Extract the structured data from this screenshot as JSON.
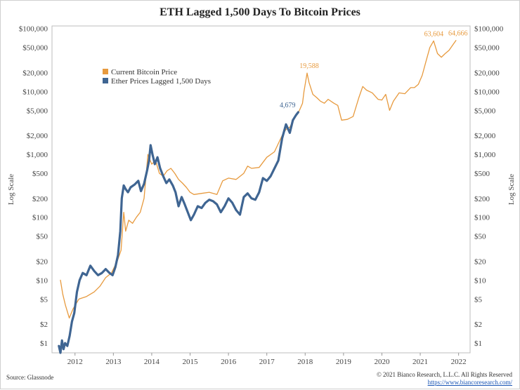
{
  "chart_data": {
    "type": "line",
    "title": "ETH Lagged 1,500 Days To Bitcoin Prices",
    "ylabel_left": "Log Scale",
    "ylabel_right": "Log Scale",
    "yscale": "log",
    "ylim": [
      0.7,
      110000
    ],
    "xlim": [
      2011.4,
      2022.3
    ],
    "x_ticks": [
      2012,
      2013,
      2014,
      2015,
      2016,
      2017,
      2018,
      2019,
      2020,
      2021,
      2022
    ],
    "y_ticks": [
      {
        "value": 1,
        "label": "$1"
      },
      {
        "value": 2,
        "label": "$2"
      },
      {
        "value": 5,
        "label": "$5"
      },
      {
        "value": 10,
        "label": "$10"
      },
      {
        "value": 20,
        "label": "$20"
      },
      {
        "value": 50,
        "label": "$50"
      },
      {
        "value": 100,
        "label": "$100"
      },
      {
        "value": 200,
        "label": "$200"
      },
      {
        "value": 500,
        "label": "$500"
      },
      {
        "value": 1000,
        "label": "$1,000"
      },
      {
        "value": 2000,
        "label": "$2,000"
      },
      {
        "value": 5000,
        "label": "$5,000"
      },
      {
        "value": 10000,
        "label": "$10,000"
      },
      {
        "value": 20000,
        "label": "$20,000"
      },
      {
        "value": 50000,
        "label": "$50,000"
      },
      {
        "value": 100000,
        "label": "$100,000"
      }
    ],
    "legend": {
      "position": "upper-left"
    },
    "series": [
      {
        "name": "Current Bitcoin Price",
        "color": "#e79a3e",
        "x": [
          2011.62,
          2011.68,
          2011.75,
          2011.85,
          2011.95,
          2012.1,
          2012.3,
          2012.5,
          2012.65,
          2012.8,
          2012.95,
          2013.1,
          2013.2,
          2013.27,
          2013.32,
          2013.4,
          2013.5,
          2013.6,
          2013.7,
          2013.8,
          2013.9,
          2013.96,
          2014.0,
          2014.1,
          2014.2,
          2014.3,
          2014.4,
          2014.5,
          2014.6,
          2014.7,
          2014.8,
          2014.9,
          2015.0,
          2015.1,
          2015.3,
          2015.5,
          2015.7,
          2015.85,
          2016.0,
          2016.2,
          2016.4,
          2016.5,
          2016.6,
          2016.8,
          2017.0,
          2017.2,
          2017.4,
          2017.5,
          2017.6,
          2017.75,
          2017.85,
          2017.93,
          2017.97,
          2018.05,
          2018.1,
          2018.2,
          2018.3,
          2018.4,
          2018.5,
          2018.6,
          2018.75,
          2018.85,
          2018.95,
          2019.1,
          2019.25,
          2019.4,
          2019.5,
          2019.6,
          2019.75,
          2019.9,
          2020.0,
          2020.1,
          2020.2,
          2020.3,
          2020.45,
          2020.6,
          2020.75,
          2020.85,
          2020.95,
          2021.05,
          2021.15,
          2021.25,
          2021.35,
          2021.45,
          2021.55,
          2021.65,
          2021.75,
          2021.85,
          2021.93
        ],
        "values": [
          10,
          6,
          4,
          2.5,
          3.5,
          5,
          5.5,
          6.5,
          8,
          11,
          13,
          20,
          30,
          120,
          60,
          90,
          80,
          100,
          120,
          200,
          1000,
          800,
          700,
          800,
          500,
          450,
          550,
          600,
          500,
          400,
          350,
          300,
          250,
          230,
          240,
          250,
          230,
          380,
          420,
          400,
          500,
          650,
          600,
          620,
          900,
          1100,
          2000,
          2500,
          2700,
          4000,
          5000,
          6500,
          10000,
          19588,
          14000,
          9000,
          8000,
          7000,
          6500,
          7500,
          6500,
          6000,
          3500,
          3600,
          4000,
          8000,
          12000,
          10500,
          9500,
          7500,
          7300,
          9000,
          5000,
          7000,
          9500,
          9200,
          11500,
          11500,
          13000,
          18000,
          30000,
          50000,
          63604,
          40000,
          35000,
          40000,
          45000,
          55000,
          64666
        ]
      },
      {
        "name": "Ether Prices Lagged 1,500 Days",
        "color": "#3f6592",
        "x": [
          2011.58,
          2011.62,
          2011.66,
          2011.7,
          2011.74,
          2011.8,
          2011.86,
          2011.92,
          2011.98,
          2012.05,
          2012.12,
          2012.2,
          2012.3,
          2012.4,
          2012.5,
          2012.6,
          2012.7,
          2012.8,
          2012.9,
          2012.98,
          2013.05,
          2013.12,
          2013.18,
          2013.22,
          2013.27,
          2013.32,
          2013.38,
          2013.45,
          2013.55,
          2013.65,
          2013.72,
          2013.8,
          2013.88,
          2013.93,
          2013.97,
          2014.02,
          2014.08,
          2014.15,
          2014.22,
          2014.3,
          2014.38,
          2014.46,
          2014.55,
          2014.62,
          2014.7,
          2014.78,
          2014.86,
          2014.94,
          2015.02,
          2015.1,
          2015.2,
          2015.3,
          2015.4,
          2015.5,
          2015.6,
          2015.7,
          2015.8,
          2015.9,
          2016.0,
          2016.1,
          2016.2,
          2016.3,
          2016.4,
          2016.5,
          2016.6,
          2016.7,
          2016.8,
          2016.9,
          2017.0,
          2017.1,
          2017.2,
          2017.3,
          2017.4,
          2017.5,
          2017.6,
          2017.68,
          2017.76,
          2017.82
        ],
        "values": [
          0.9,
          0.7,
          1.1,
          0.8,
          1.0,
          0.9,
          1.3,
          2.2,
          3.0,
          6.5,
          10,
          13,
          12,
          17,
          14,
          12,
          13,
          15,
          13,
          12,
          16,
          25,
          60,
          200,
          320,
          280,
          250,
          300,
          330,
          380,
          260,
          340,
          560,
          800,
          1400,
          1000,
          700,
          900,
          600,
          450,
          350,
          400,
          320,
          250,
          150,
          210,
          160,
          120,
          90,
          110,
          150,
          140,
          170,
          190,
          180,
          160,
          120,
          150,
          200,
          170,
          130,
          110,
          210,
          240,
          200,
          190,
          250,
          420,
          380,
          450,
          600,
          800,
          1800,
          3000,
          2200,
          3500,
          4200,
          4679
        ]
      }
    ],
    "annotations": [
      {
        "text": "19,588",
        "x": 2018.05,
        "y": 19588,
        "series": "Current Bitcoin Price"
      },
      {
        "text": "63,604",
        "x": 2021.3,
        "y": 63604,
        "series": "Current Bitcoin Price"
      },
      {
        "text": "64,666",
        "x": 2021.93,
        "y": 64666,
        "series": "Current Bitcoin Price"
      },
      {
        "text": "4,679",
        "x": 2017.82,
        "y": 4679,
        "series": "Ether Prices Lagged 1,500 Days"
      }
    ]
  },
  "footer": {
    "source": "Source: Glassnode",
    "copyright": "© 2021 Bianco Research, L.L.C. All Rights Reserved",
    "url": "https://www.biancoresearch.com/"
  }
}
